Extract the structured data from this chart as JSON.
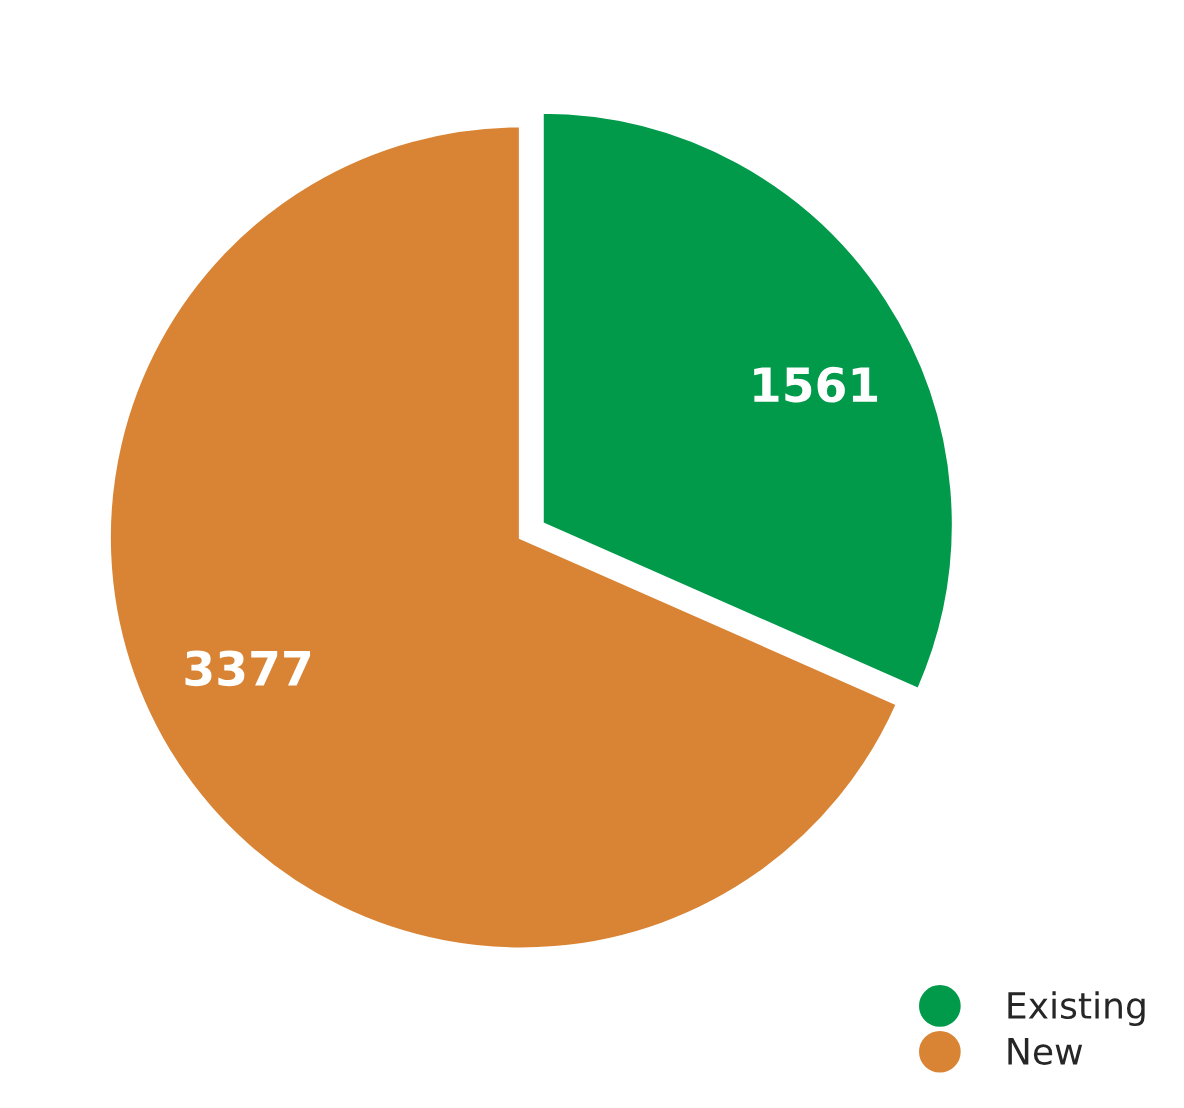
{
  "chart_data": {
    "type": "pie",
    "categories": [
      "Existing",
      "New"
    ],
    "values": [
      1561,
      3377
    ],
    "colors": [
      "#009a4a",
      "#d98434"
    ],
    "data_labels": true,
    "legend": "bottom right"
  }
}
